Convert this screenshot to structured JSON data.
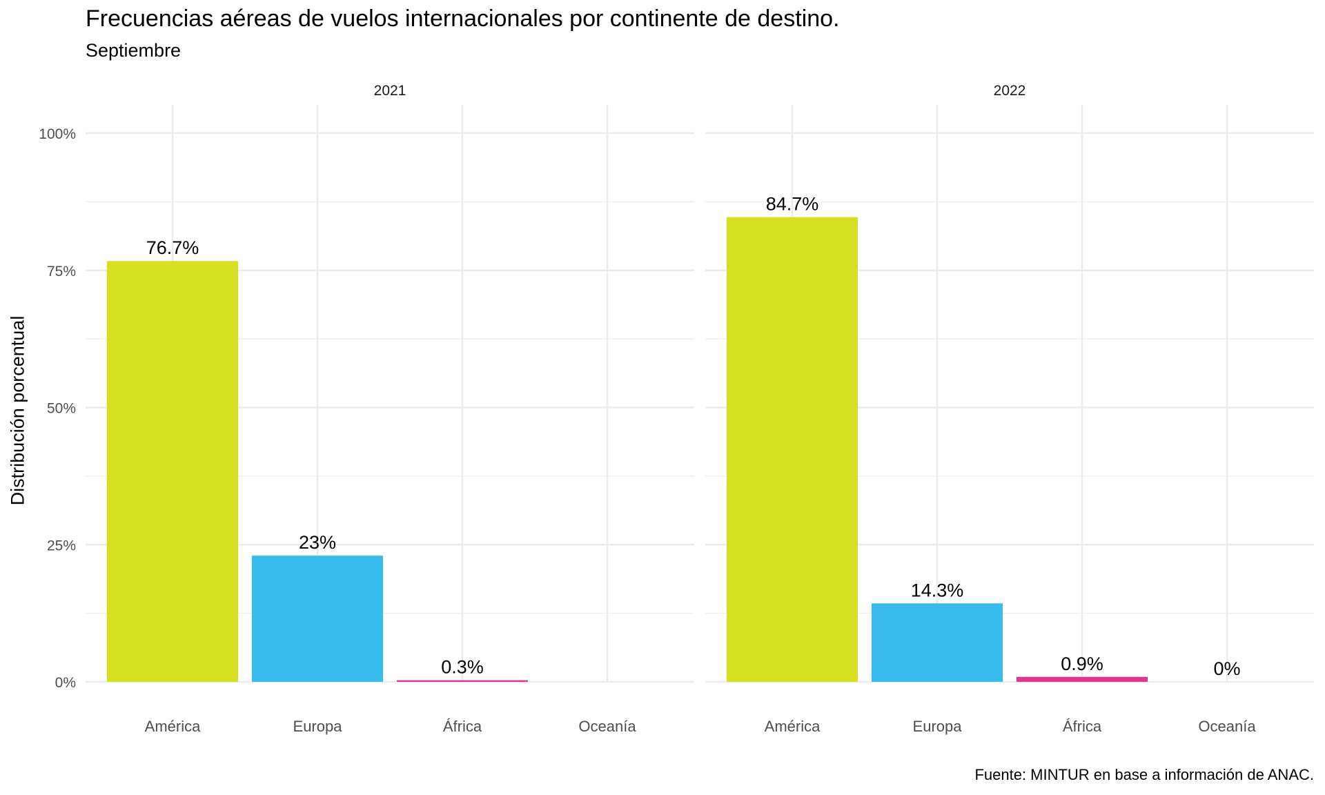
{
  "chart_data": {
    "type": "bar",
    "title": "Frecuencias aéreas de vuelos internacionales por continente de destino.",
    "subtitle": "Septiembre",
    "ylabel": "Distribución porcentual",
    "xlabel": "",
    "caption": "Fuente: MINTUR en base a información de ANAC.",
    "ylim": [
      0,
      100
    ],
    "yticks": [
      0,
      25,
      50,
      75,
      100
    ],
    "ytick_labels": [
      "0%",
      "25%",
      "50%",
      "75%",
      "100%"
    ],
    "categories": [
      "América",
      "Europa",
      "África",
      "Oceanía"
    ],
    "colors": {
      "América": "#d5e021",
      "Europa": "#37bbed",
      "África": "#e7348c",
      "Oceanía": "#7a7a7a"
    },
    "grid": true,
    "legend": "none",
    "facets": [
      {
        "name": "2021",
        "values": [
          76.7,
          23.0,
          0.3,
          0.0
        ],
        "labels": [
          "76.7%",
          "23%",
          "0.3%",
          ""
        ]
      },
      {
        "name": "2022",
        "values": [
          84.7,
          14.3,
          0.9,
          0.0
        ],
        "labels": [
          "84.7%",
          "14.3%",
          "0.9%",
          "0%"
        ]
      }
    ]
  }
}
